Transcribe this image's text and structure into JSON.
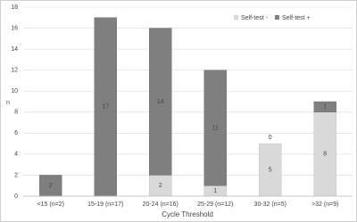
{
  "chart_data": {
    "type": "stacked-bar",
    "categories": [
      "<15 (n=2)",
      "15-19 (n=17)",
      "20-24 (n=16)",
      "25-29 (n=12)",
      "30-32 (n=5)",
      ">32 (n=9)"
    ],
    "series": [
      {
        "name": "Self-test -",
        "color": "#d9d9d9",
        "values": [
          0,
          0,
          2,
          1,
          5,
          8
        ]
      },
      {
        "name": "Self-test +",
        "color": "#7f7f7f",
        "values": [
          2,
          17,
          14,
          11,
          0,
          1
        ]
      }
    ],
    "ylim": [
      0,
      18
    ],
    "yticks": [
      0,
      2,
      4,
      6,
      8,
      10,
      12,
      14,
      16,
      18
    ],
    "y_label": "n",
    "x_label": "Cycle Threshold",
    "grid": true,
    "legend": "top-right"
  }
}
